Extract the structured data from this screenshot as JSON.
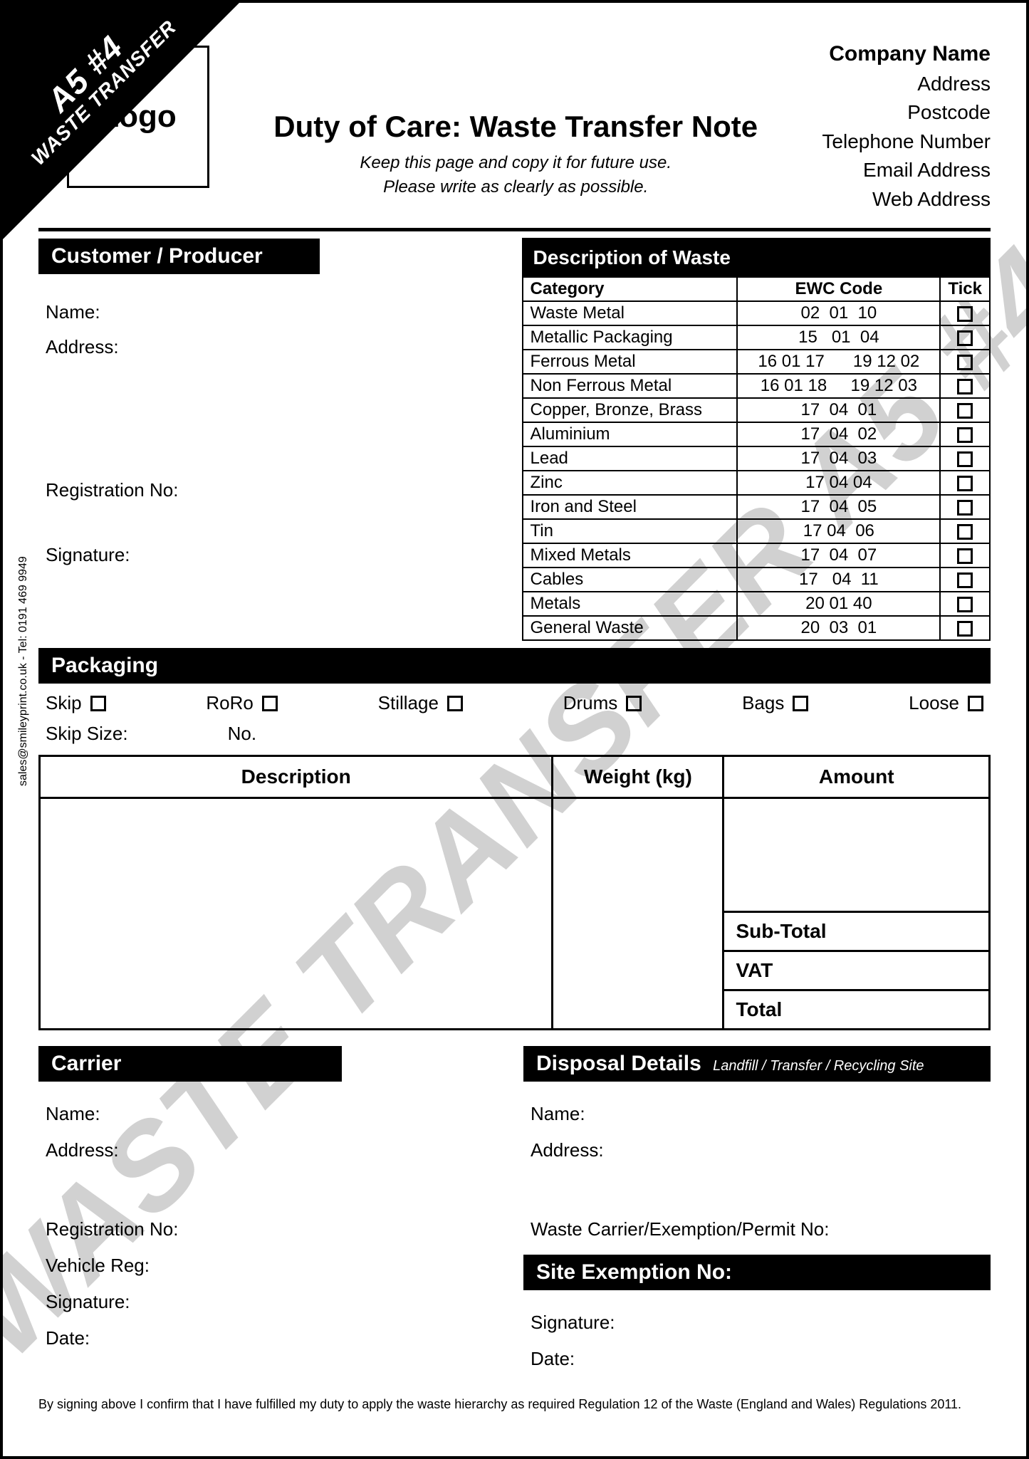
{
  "corner": {
    "line1": "A5 #4",
    "line2": "WASTE TRANSFER"
  },
  "watermark": "WASTE TRANSFER A5 #4",
  "logo_text": "Logo",
  "title": "Duty of Care: Waste Transfer Note",
  "subtitle1": "Keep this page and copy it for future use.",
  "subtitle2": "Please write as clearly as possible.",
  "company": {
    "name": "Company Name",
    "address": "Address",
    "postcode": "Postcode",
    "phone": "Telephone Number",
    "email": "Email Address",
    "web": "Web Address"
  },
  "sections": {
    "customer": "Customer / Producer",
    "waste_desc": "Description of Waste",
    "packaging": "Packaging",
    "carrier": "Carrier",
    "disposal": "Disposal Details",
    "disposal_sub": "Landfill / Transfer / Recycling Site",
    "site_exemption": "Site Exemption No:"
  },
  "labels": {
    "name": "Name:",
    "address": "Address:",
    "reg_no": "Registration No:",
    "signature": "Signature:",
    "vehicle_reg": "Vehicle Reg:",
    "date": "Date:",
    "skip_size": "Skip Size:",
    "no": "No.",
    "waste_permit": "Waste Carrier/Exemption/Permit No:"
  },
  "waste_headers": {
    "category": "Category",
    "ewc": "EWC Code",
    "tick": "Tick"
  },
  "waste_rows": [
    {
      "cat": "Waste Metal",
      "code": "02  01  10"
    },
    {
      "cat": "Metallic Packaging",
      "code": "15   01  04"
    },
    {
      "cat": "Ferrous Metal",
      "code": "16 01 17      19 12 02"
    },
    {
      "cat": "Non Ferrous Metal",
      "code": "16 01 18     19 12 03"
    },
    {
      "cat": "Copper, Bronze, Brass",
      "code": "17  04  01"
    },
    {
      "cat": "Aluminium",
      "code": "17  04  02"
    },
    {
      "cat": "Lead",
      "code": "17  04  03"
    },
    {
      "cat": "Zinc",
      "code": "17 04 04"
    },
    {
      "cat": "Iron and Steel",
      "code": "17  04  05"
    },
    {
      "cat": "Tin",
      "code": "17 04  06"
    },
    {
      "cat": "Mixed Metals",
      "code": "17  04  07"
    },
    {
      "cat": "Cables",
      "code": "17   04  11"
    },
    {
      "cat": "Metals",
      "code": "20 01 40"
    },
    {
      "cat": "General Waste",
      "code": "20  03  01"
    }
  ],
  "packaging_options": [
    "Skip",
    "RoRo",
    "Stillage",
    "Drums",
    "Bags",
    "Loose"
  ],
  "dwa_headers": {
    "desc": "Description",
    "weight": "Weight (kg)",
    "amount": "Amount"
  },
  "totals": {
    "subtotal": "Sub-Total",
    "vat": "VAT",
    "total": "Total"
  },
  "side_credit": "sales@smileyprint.co.uk  -  Tel: 0191 469 9949",
  "disclaimer": "By signing above I confirm that I have fulfilled my duty to apply the waste hierarchy as required Regulation 12 of the Waste (England and Wales) Regulations 2011."
}
